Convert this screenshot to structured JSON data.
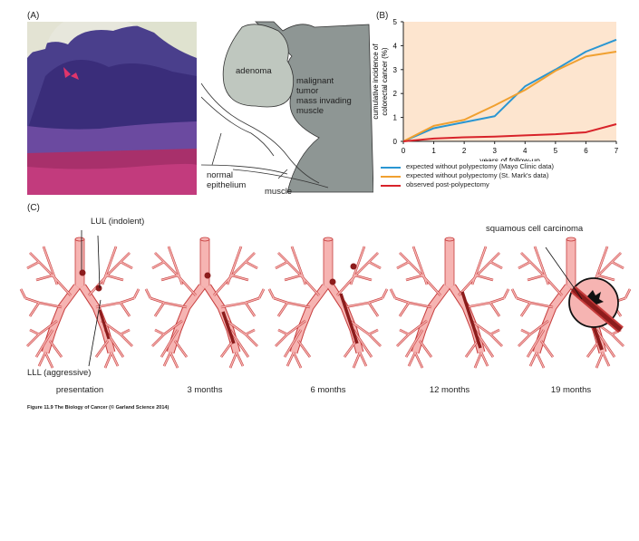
{
  "panelA": {
    "label": "(A)",
    "diagram_labels": {
      "adenoma": "adenoma",
      "malignant": [
        "malignant",
        "tumor",
        "mass invading",
        "muscle"
      ],
      "normal": [
        "normal",
        "epithelium"
      ],
      "muscle": "muscle"
    }
  },
  "panelB": {
    "label": "(B)",
    "legend": [
      {
        "text": "expected without polypectomy (Mayo Clinic data)",
        "color": "#2a96d2"
      },
      {
        "text": "expected without polypectomy (St. Mark's data)",
        "color": "#f0a030"
      },
      {
        "text": "observed post-polypectomy",
        "color": "#d8232a"
      }
    ]
  },
  "chart_data": {
    "type": "line",
    "xlabel": "years of follow-up",
    "ylabel": "cumulative incidence of colorectal cancer (%)",
    "xlim": [
      0,
      7
    ],
    "ylim": [
      0,
      5
    ],
    "xticks": [
      "0",
      "1",
      "2",
      "3",
      "4",
      "5",
      "6",
      "7"
    ],
    "yticks": [
      "0",
      "1",
      "2",
      "3",
      "4",
      "5"
    ],
    "grid": false,
    "background": "#fde5cf",
    "series": [
      {
        "name": "expected without polypectomy (Mayo Clinic data)",
        "color": "#2a96d2",
        "x": [
          0,
          1,
          2,
          3,
          4,
          5,
          6,
          7
        ],
        "y": [
          0,
          0.55,
          0.8,
          1.05,
          2.3,
          3.0,
          3.75,
          4.25
        ]
      },
      {
        "name": "expected without polypectomy (St. Mark's data)",
        "color": "#f0a030",
        "x": [
          0,
          1,
          2,
          3,
          4,
          5,
          6,
          7
        ],
        "y": [
          0,
          0.65,
          0.9,
          1.5,
          2.15,
          2.95,
          3.55,
          3.75
        ]
      },
      {
        "name": "observed post-polypectomy",
        "color": "#d8232a",
        "x": [
          0,
          1,
          2,
          3,
          4,
          5,
          6,
          7
        ],
        "y": [
          0,
          0.12,
          0.17,
          0.2,
          0.25,
          0.3,
          0.38,
          0.72
        ]
      }
    ]
  },
  "panelC": {
    "label": "(C)",
    "annotations": {
      "lul": "LUL (indolent)",
      "lll": "LLL (aggressive)",
      "scc": "squamous cell carcinoma"
    },
    "timepoints": [
      "presentation",
      "3 months",
      "6 months",
      "12 months",
      "19 months"
    ]
  },
  "caption": "Figure 11.9  The Biology of Cancer (© Garland Science 2014)",
  "colors": {
    "lung_fill": "#f6b4b2",
    "lung_stroke": "#c63c3c",
    "lesion": "#8c1c1c",
    "tissue": "#5b3b8c"
  }
}
